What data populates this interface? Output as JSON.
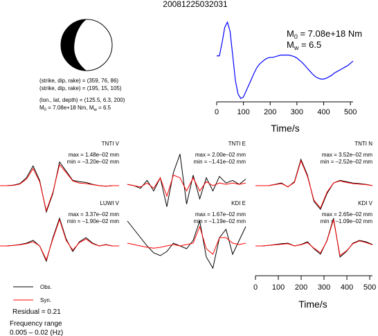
{
  "header": {
    "event_id": "20081225032031"
  },
  "mechanism": {
    "plane1": "(strike, dip, rake) = (359, 76, 86)",
    "plane2": "(strike, dip, rake) = (195, 15, 105)",
    "location": "(lon., lat, depth) = (125.5, 6.3, 200)",
    "moment_prefix": "M",
    "moment_sub": "0",
    "moment_text": " = 7.08e+18 Nm, M",
    "mw_sub": "w",
    "mw_text": " = 6.5"
  },
  "stf": {
    "m0_prefix": "M",
    "m0_sub": "0",
    "m0_value": " = 7.08e+18 Nm",
    "mw_prefix": "M",
    "mw_sub": "w",
    "mw_value": " = 6.5",
    "xlabel": "Time/s"
  },
  "waveform_axis": {
    "xlabel": "Time/s"
  },
  "legend": {
    "obs": "Obs.",
    "syn": "Syn.",
    "residual": "Residual = 0.21",
    "freq_label": "Frequency range",
    "freq_value": "0.005 – 0.02 (Hz)"
  },
  "colors": {
    "observed": "#000000",
    "synthetic": "#ff0000",
    "stf_line": "#0000ff"
  },
  "chart_data": [
    {
      "type": "line",
      "name": "source-time-function",
      "x": [
        0,
        10,
        20,
        30,
        40,
        50,
        60,
        70,
        80,
        90,
        100,
        110,
        120,
        130,
        140,
        150,
        160,
        170,
        180,
        190,
        200,
        210,
        220,
        230,
        240,
        250,
        260,
        270,
        280,
        290,
        300,
        310,
        320,
        330,
        340,
        350,
        360,
        370,
        380,
        390,
        400,
        410,
        420,
        430,
        440,
        450,
        460,
        470,
        480,
        490,
        500,
        510
      ],
      "y": [
        0.55,
        0.55,
        0.72,
        0.93,
        1.0,
        0.88,
        0.55,
        0.22,
        0.04,
        -0.02,
        0.0,
        0.08,
        0.16,
        0.24,
        0.32,
        0.39,
        0.44,
        0.47,
        0.5,
        0.52,
        0.53,
        0.53,
        0.54,
        0.55,
        0.56,
        0.56,
        0.56,
        0.56,
        0.55,
        0.54,
        0.52,
        0.49,
        0.46,
        0.42,
        0.38,
        0.34,
        0.3,
        0.27,
        0.25,
        0.24,
        0.24,
        0.25,
        0.27,
        0.29,
        0.32,
        0.34,
        0.36,
        0.38,
        0.4,
        0.42,
        0.45,
        0.48
      ],
      "xlim": [
        0,
        510
      ],
      "xticks": [
        0,
        100,
        200,
        300,
        400,
        500
      ],
      "xlabel": "Time/s"
    },
    {
      "type": "line",
      "time_axis": {
        "xlim": [
          0,
          512
        ],
        "xticks": [
          0,
          100,
          200,
          300,
          400,
          500
        ],
        "xlabel": "Time/s"
      },
      "stations": [
        {
          "label": "TNTI V",
          "max": "max = 1.48e–02 mm",
          "min": "min = –3.20e–02 mm",
          "obs": [
            0,
            0,
            0.02,
            0.08,
            0.3,
            0.75,
            0.2,
            -1.0,
            -0.3,
            0.9,
            0.55,
            0.2,
            0.15,
            0.12,
            0.05,
            0.0,
            -0.02,
            0,
            0
          ],
          "syn": [
            0,
            0,
            0.01,
            0.06,
            0.25,
            0.65,
            0.15,
            -0.95,
            -0.25,
            0.8,
            0.5,
            0.18,
            0.1,
            0.08,
            0.04,
            0.0,
            -0.02,
            0,
            0
          ]
        },
        {
          "label": "TNTI E",
          "max": "max = 2.00e–02 mm",
          "min": "min = –1.41e–02 mm",
          "obs": [
            0.05,
            0.0,
            -0.1,
            0.2,
            -0.2,
            0.3,
            -0.8,
            0.5,
            1.2,
            -0.7,
            0.4,
            -0.5,
            0.3,
            -0.2,
            0.35,
            0.1,
            0.2,
            0.05,
            0.25
          ],
          "syn": [
            0.05,
            0.0,
            -0.05,
            0.1,
            -0.1,
            0.3,
            -0.4,
            0.4,
            0.3,
            -0.2,
            0.3,
            -0.2,
            0.15,
            0.0,
            0.1,
            0.05,
            0.1,
            0.05,
            0.1
          ]
        },
        {
          "label": "TNTI N",
          "max": "max = 3.52e–02 mm",
          "min": "min = –2.52e–02 mm",
          "obs": [
            0,
            0,
            0.0,
            0.05,
            0.1,
            -0.05,
            0.15,
            1.0,
            0.4,
            -0.6,
            -0.9,
            -0.3,
            0.1,
            0.2,
            0.15,
            0.1,
            0.08,
            0.05,
            0
          ],
          "syn": [
            0,
            0,
            0.0,
            0.04,
            0.08,
            -0.04,
            0.12,
            0.95,
            0.35,
            -0.55,
            -0.85,
            -0.25,
            0.1,
            0.18,
            0.12,
            0.08,
            0.06,
            0.04,
            0
          ]
        },
        {
          "label": "LUWI V",
          "max": "max = 3.37e–02 mm",
          "min": "min = –1.90e–02 mm",
          "obs": [
            0,
            0,
            0.02,
            0.05,
            0.1,
            0.2,
            0.0,
            -0.55,
            0.3,
            1.0,
            0.25,
            -0.2,
            0.15,
            0.3,
            0.1,
            0.0,
            0.05,
            0,
            0
          ],
          "syn": [
            0,
            0,
            0.02,
            0.04,
            0.08,
            0.15,
            0.0,
            -0.5,
            0.25,
            0.95,
            0.2,
            -0.15,
            0.12,
            0.25,
            0.08,
            0.0,
            0.04,
            0,
            0
          ]
        },
        {
          "label": "KDI E",
          "max": "max = 1.67e–02 mm",
          "min": "min = –1.19e–02 mm",
          "obs": [
            0.9,
            0.6,
            0.3,
            0.0,
            -0.25,
            -0.35,
            -0.2,
            0.1,
            0.0,
            -0.1,
            0.2,
            0.9,
            -0.4,
            -0.8,
            0.3,
            0.6,
            -0.3,
            0.2,
            0.7
          ],
          "syn": [
            0.1,
            0.05,
            0.0,
            -0.05,
            -0.08,
            -0.05,
            0.0,
            0.05,
            0.0,
            0.05,
            0.1,
            0.7,
            -0.1,
            -0.3,
            0.3,
            0.3,
            0.1,
            0.05,
            0.1
          ]
        },
        {
          "label": "KDI V",
          "max": "max = 2.65e–02 mm",
          "min": "min = –1.09e–02 mm",
          "obs": [
            0,
            0,
            0.02,
            0.05,
            0.08,
            0.1,
            0.0,
            0.05,
            0.15,
            -0.1,
            -0.3,
            0.2,
            1.0,
            -0.4,
            -0.2,
            0.1,
            0.2,
            0.15,
            0.05
          ],
          "syn": [
            0,
            0,
            0.02,
            0.04,
            0.06,
            0.08,
            0.0,
            0.04,
            0.12,
            -0.08,
            -0.25,
            0.18,
            0.95,
            -0.35,
            -0.18,
            0.08,
            0.18,
            0.12,
            0.04
          ]
        }
      ]
    }
  ]
}
